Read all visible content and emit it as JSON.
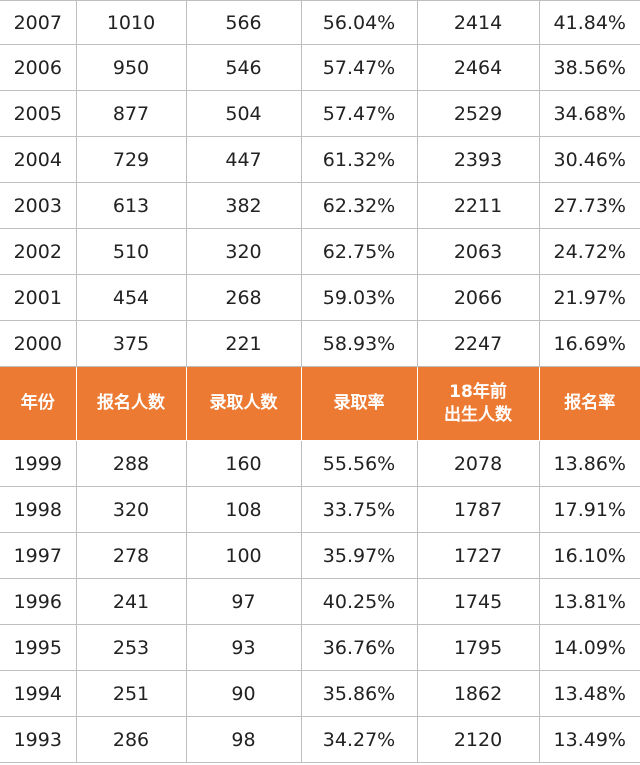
{
  "colors": {
    "header_bg": "#ec7a32",
    "header_text": "#ffffff",
    "border": "#bfbfbf"
  },
  "header": {
    "year": "年份",
    "applicants": "报名人数",
    "admitted": "录取人数",
    "admission_rate": "录取率",
    "births_line1": "18年前",
    "births_line2": "出生人数",
    "application_rate": "报名率"
  },
  "rows_top": [
    [
      "2007",
      "1010",
      "566",
      "56.04%",
      "2414",
      "41.84%"
    ],
    [
      "2006",
      "950",
      "546",
      "57.47%",
      "2464",
      "38.56%"
    ],
    [
      "2005",
      "877",
      "504",
      "57.47%",
      "2529",
      "34.68%"
    ],
    [
      "2004",
      "729",
      "447",
      "61.32%",
      "2393",
      "30.46%"
    ],
    [
      "2003",
      "613",
      "382",
      "62.32%",
      "2211",
      "27.73%"
    ],
    [
      "2002",
      "510",
      "320",
      "62.75%",
      "2063",
      "24.72%"
    ],
    [
      "2001",
      "454",
      "268",
      "59.03%",
      "2066",
      "21.97%"
    ],
    [
      "2000",
      "375",
      "221",
      "58.93%",
      "2247",
      "16.69%"
    ]
  ],
  "rows_bottom": [
    [
      "1999",
      "288",
      "160",
      "55.56%",
      "2078",
      "13.86%"
    ],
    [
      "1998",
      "320",
      "108",
      "33.75%",
      "1787",
      "17.91%"
    ],
    [
      "1997",
      "278",
      "100",
      "35.97%",
      "1727",
      "16.10%"
    ],
    [
      "1996",
      "241",
      "97",
      "40.25%",
      "1745",
      "13.81%"
    ],
    [
      "1995",
      "253",
      "93",
      "36.76%",
      "1795",
      "14.09%"
    ],
    [
      "1994",
      "251",
      "90",
      "35.86%",
      "1862",
      "13.48%"
    ],
    [
      "1993",
      "286",
      "98",
      "34.27%",
      "2120",
      "13.49%"
    ]
  ]
}
